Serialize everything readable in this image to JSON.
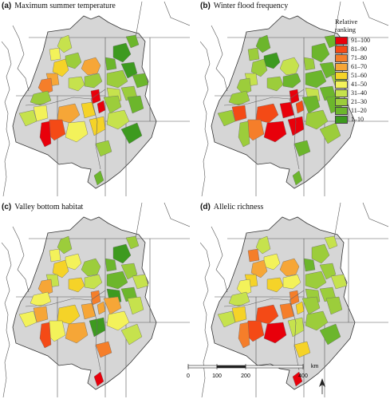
{
  "panels": [
    {
      "id": "a",
      "letter": "(a)",
      "title": "Maximum summer temperature",
      "ranks": {
        "p1": 7,
        "p2": 3,
        "p3": 4,
        "p4": 3,
        "p5": 6,
        "p6": 7,
        "p7": 4,
        "p8": 5,
        "p9": 8,
        "p10": 3,
        "p11": 10,
        "p12": 10,
        "p13": 1,
        "p14": 2,
        "p15": 2,
        "p16": 3,
        "p17": 1,
        "p18": 2,
        "p19": 3,
        "p20": 4,
        "p21": 6,
        "p22": 7,
        "p23": 5,
        "p24": 9,
        "p25": 6,
        "p26": 5,
        "p27": 10,
        "p28": 4,
        "p29": 3,
        "p30": 4,
        "p31": 2,
        "p32": 1,
        "p33": 3,
        "p34": 2
      }
    },
    {
      "id": "b",
      "letter": "(b)",
      "title": "Winter flood frequency",
      "ranks": {
        "p1": 4,
        "p2": 2,
        "p3": 3,
        "p4": 1,
        "p5": 3,
        "p6": 4,
        "p7": 2,
        "p8": 3,
        "p9": 3,
        "p10": 3,
        "p11": 10,
        "p12": 9,
        "p13": 2,
        "p14": 2,
        "p15": 3,
        "p16": 2,
        "p17": 2,
        "p18": 3,
        "p19": 2,
        "p20": 4,
        "p21": 10,
        "p22": 9,
        "p23": 10,
        "p24": 8,
        "p25": 10,
        "p26": 9,
        "p27": 3,
        "p28": 3,
        "p29": 2,
        "p30": 3,
        "p31": 2,
        "p32": 3,
        "p33": 2,
        "p34": 2
      }
    },
    {
      "id": "c",
      "letter": "(c)",
      "title": "Valley bottom habitat",
      "ranks": {
        "p1": 3,
        "p2": 4,
        "p3": 6,
        "p4": 5,
        "p5": 6,
        "p6": 4,
        "p7": 3,
        "p8": 5,
        "p9": 7,
        "p10": 5,
        "p11": 8,
        "p12": 7,
        "p13": 1,
        "p14": 3,
        "p15": 2,
        "p16": 2,
        "p17": 3,
        "p18": 4,
        "p19": 2,
        "p20": 1,
        "p21": 1,
        "p22": 6,
        "p23": 7,
        "p24": 5,
        "p25": 7,
        "p26": 7,
        "p27": 9,
        "p28": 5,
        "p29": 7,
        "p30": 5,
        "p31": 4,
        "p32": 4,
        "p33": 8,
        "p34": 10
      }
    },
    {
      "id": "d",
      "letter": "(d)",
      "title": "Allelic richness",
      "ranks": {
        "p1": 7,
        "p2": 5,
        "p3": 6,
        "p4": 5,
        "p5": 7,
        "p6": 6,
        "p7": 4,
        "p8": 8,
        "p9": 5,
        "p10": 4,
        "p11": 8,
        "p12": 6,
        "p13": 3,
        "p14": 4,
        "p15": 2,
        "p16": 3,
        "p17": 3,
        "p18": 4,
        "p19": 3,
        "p20": 3,
        "p21": 4,
        "p22": 9,
        "p23": 10,
        "p24": 9,
        "p25": 8,
        "p26": 6,
        "p27": 8,
        "p28": 4,
        "p29": 3,
        "p30": 3,
        "p31": 3,
        "p32": 2,
        "p33": 6,
        "p34": 10
      }
    }
  ],
  "legend": {
    "title_line1": "Relative",
    "title_line2": "ranking",
    "classes": [
      {
        "label": "91–100",
        "color": "#e8000b"
      },
      {
        "label": "81–90",
        "color": "#f44a16"
      },
      {
        "label": "71–80",
        "color": "#f57e2a"
      },
      {
        "label": "61–70",
        "color": "#f6a637"
      },
      {
        "label": "51–60",
        "color": "#f5d328"
      },
      {
        "label": "41–50",
        "color": "#f3f25a"
      },
      {
        "label": "31–40",
        "color": "#c6e24d"
      },
      {
        "label": "21–30",
        "color": "#9ccd3b"
      },
      {
        "label": "11–20",
        "color": "#6cb62c"
      },
      {
        "label": "1–10",
        "color": "#3d9a1f"
      }
    ]
  },
  "scalebar": {
    "ticks": [
      "0",
      "100",
      "200",
      "400"
    ],
    "unit": "km"
  },
  "colors": {
    "basin_fill": "#d6d6d6",
    "outline": "#333333",
    "ocean": "#ffffff"
  }
}
